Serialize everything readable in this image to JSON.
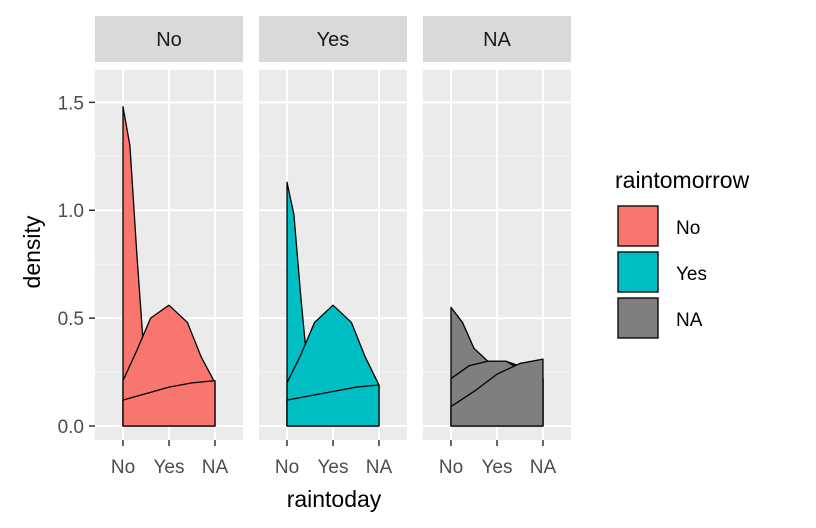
{
  "chart_data": {
    "type": "area",
    "subtype": "density-facets",
    "xlabel": "raintoday",
    "ylabel": "density",
    "x_categories": [
      "No",
      "Yes",
      "NA"
    ],
    "ylim": [
      0,
      1.65
    ],
    "yticks": [
      0.0,
      0.5,
      1.0,
      1.5
    ],
    "ytick_labels": [
      "0.0",
      "0.5",
      "1.0",
      "1.5"
    ],
    "grid": true,
    "legend": {
      "title": "raintomorrow",
      "placement": "right",
      "entries": [
        {
          "label": "No",
          "color": "#F8766D"
        },
        {
          "label": "Yes",
          "color": "#00BFC4"
        },
        {
          "label": "NA",
          "color": "#7F7F7F"
        }
      ]
    },
    "facets": [
      {
        "label": "No",
        "fill": "#F8766D",
        "curves": [
          {
            "x": [
              1.0,
              1.15,
              1.3,
              1.5,
              1.7,
              2.0,
              2.5,
              3.0
            ],
            "y": [
              1.48,
              1.3,
              0.8,
              0.2,
              0.0,
              0.0,
              0.0,
              0.0
            ]
          },
          {
            "x": [
              1.0,
              1.3,
              1.6,
              2.0,
              2.4,
              2.7,
              3.0
            ],
            "y": [
              0.21,
              0.35,
              0.5,
              0.56,
              0.48,
              0.32,
              0.2
            ]
          },
          {
            "x": [
              1.0,
              1.5,
              2.0,
              2.5,
              3.0
            ],
            "y": [
              0.12,
              0.15,
              0.18,
              0.2,
              0.21
            ]
          }
        ]
      },
      {
        "label": "Yes",
        "fill": "#00BFC4",
        "curves": [
          {
            "x": [
              1.0,
              1.15,
              1.3,
              1.5,
              1.7,
              2.0,
              2.5,
              3.0
            ],
            "y": [
              1.13,
              0.98,
              0.6,
              0.15,
              0.0,
              0.0,
              0.0,
              0.0
            ]
          },
          {
            "x": [
              1.0,
              1.3,
              1.6,
              2.0,
              2.4,
              2.7,
              3.0
            ],
            "y": [
              0.2,
              0.33,
              0.48,
              0.56,
              0.48,
              0.32,
              0.19
            ]
          },
          {
            "x": [
              1.0,
              1.5,
              2.0,
              2.5,
              3.0
            ],
            "y": [
              0.12,
              0.14,
              0.16,
              0.18,
              0.19
            ]
          }
        ]
      },
      {
        "label": "NA",
        "fill": "#7F7F7F",
        "curves": [
          {
            "x": [
              1.0,
              1.25,
              1.5,
              1.8,
              2.2,
              2.6,
              3.0
            ],
            "y": [
              0.55,
              0.48,
              0.36,
              0.3,
              0.3,
              0.27,
              0.22
            ]
          },
          {
            "x": [
              1.0,
              1.4,
              1.8,
              2.2,
              2.6,
              3.0
            ],
            "y": [
              0.22,
              0.28,
              0.3,
              0.3,
              0.25,
              0.22
            ]
          },
          {
            "x": [
              1.0,
              1.5,
              2.0,
              2.5,
              3.0
            ],
            "y": [
              0.09,
              0.16,
              0.24,
              0.29,
              0.31
            ]
          }
        ]
      }
    ]
  }
}
